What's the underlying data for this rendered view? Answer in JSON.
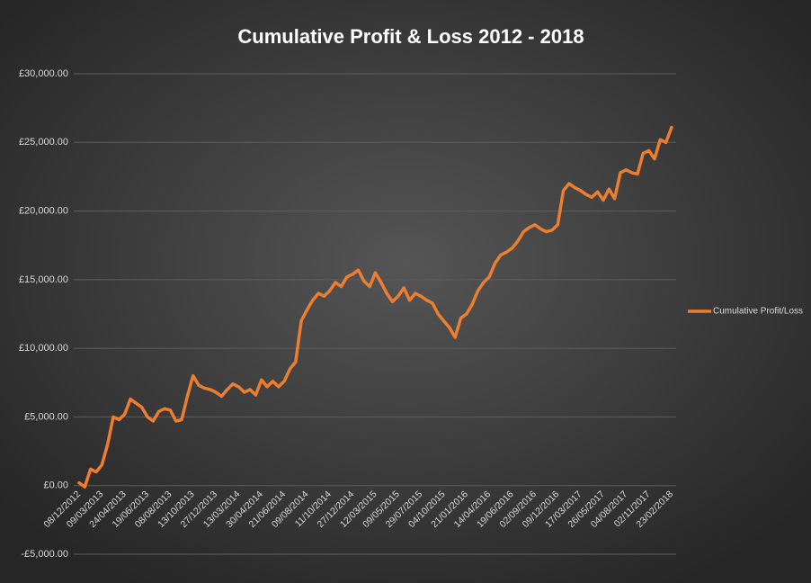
{
  "chart_data": {
    "type": "line",
    "title": "Cumulative Profit & Loss 2012 - 2018",
    "categories": [
      "08/12/2012",
      null,
      null,
      null,
      "09/03/2013",
      null,
      null,
      null,
      "24/04/2013",
      null,
      null,
      null,
      "19/06/2013",
      null,
      null,
      null,
      "08/08/2013",
      null,
      null,
      null,
      "13/10/2013",
      null,
      null,
      null,
      "27/12/2013",
      null,
      null,
      null,
      "13/03/2014",
      null,
      null,
      null,
      "30/04/2014",
      null,
      null,
      null,
      "21/06/2014",
      null,
      null,
      null,
      "09/08/2014",
      null,
      null,
      null,
      "11/10/2014",
      null,
      null,
      null,
      "27/12/2014",
      null,
      null,
      null,
      "12/03/2015",
      null,
      null,
      null,
      "09/05/2015",
      null,
      null,
      null,
      "29/07/2015",
      null,
      null,
      null,
      "04/10/2015",
      null,
      null,
      null,
      "21/01/2016",
      null,
      null,
      null,
      "14/04/2016",
      null,
      null,
      null,
      "19/06/2016",
      null,
      null,
      null,
      "02/09/2016",
      null,
      null,
      null,
      "09/12/2016",
      null,
      null,
      null,
      "17/03/2017",
      null,
      null,
      null,
      "26/05/2017",
      null,
      null,
      null,
      "04/08/2017",
      null,
      null,
      null,
      "02/11/2017",
      null,
      null,
      null,
      "23/02/2018"
    ],
    "series": [
      {
        "name": "Cumulative Profit/Loss",
        "color": "#ed7d31",
        "values": [
          200,
          -100,
          1200,
          1000,
          1500,
          3000,
          5000,
          4800,
          5200,
          6300,
          6000,
          5700,
          5000,
          4700,
          5400,
          5600,
          5500,
          4700,
          4800,
          6500,
          8000,
          7300,
          7100,
          7000,
          6800,
          6500,
          7000,
          7400,
          7200,
          6800,
          7000,
          6600,
          7700,
          7200,
          7600,
          7200,
          7600,
          8500,
          9000,
          12000,
          12800,
          13500,
          14000,
          13800,
          14200,
          14800,
          14500,
          15200,
          15400,
          15700,
          14900,
          14500,
          15500,
          14800,
          14000,
          13400,
          13800,
          14400,
          13500,
          14000,
          13800,
          13500,
          13300,
          12500,
          12000,
          11500,
          10800,
          12200,
          12500,
          13200,
          14200,
          14800,
          15200,
          16200,
          16800,
          17000,
          17300,
          17800,
          18500,
          18800,
          19000,
          18700,
          18500,
          18600,
          19000,
          21500,
          22000,
          21700,
          21500,
          21200,
          21000,
          21400,
          20800,
          21600,
          20900,
          22800,
          23000,
          22800,
          22700,
          24200,
          24400,
          23800,
          25200,
          25000,
          26100
        ]
      }
    ],
    "ylim": [
      -5000,
      30000
    ],
    "yticks": [
      {
        "value": -5000,
        "label": "-£5,000.00"
      },
      {
        "value": 0,
        "label": "£0.00"
      },
      {
        "value": 5000,
        "label": "£5,000.00"
      },
      {
        "value": 10000,
        "label": "£10,000.00"
      },
      {
        "value": 15000,
        "label": "£15,000.00"
      },
      {
        "value": 20000,
        "label": "£20,000.00"
      },
      {
        "value": 25000,
        "label": "£25,000.00"
      },
      {
        "value": 30000,
        "label": "£30,000.00"
      }
    ],
    "grid": true,
    "legend": "right"
  }
}
